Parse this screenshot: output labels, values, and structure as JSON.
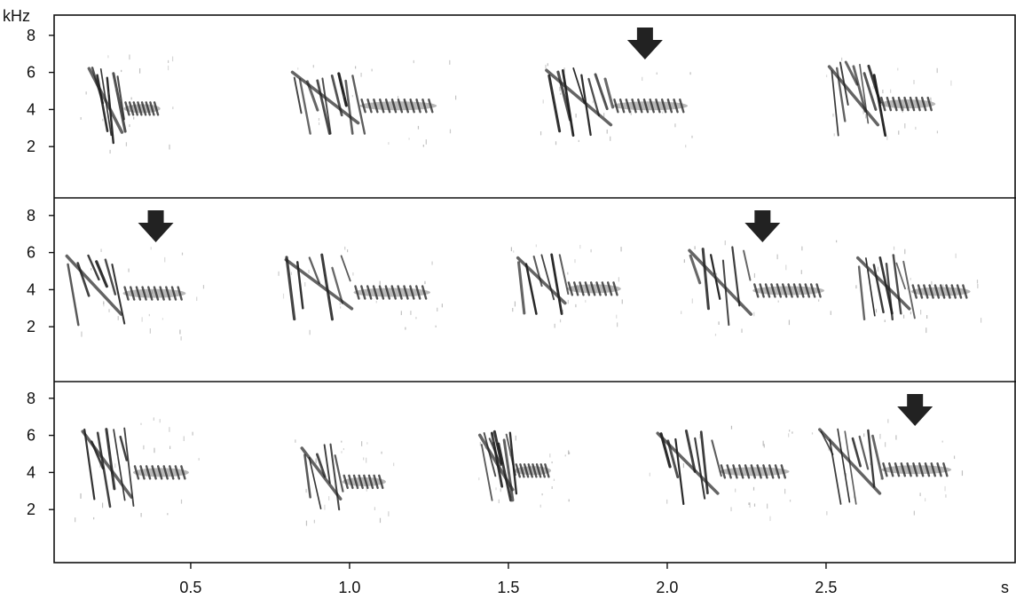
{
  "chart_data": {
    "type": "spectrogram",
    "y_unit": "kHz",
    "x_unit": "s",
    "x_ticks": [
      0.5,
      1.0,
      1.5,
      2.0,
      2.5
    ],
    "x_tick_labels": [
      "0.5",
      "1.0",
      "1.5",
      "2.0",
      "2.5"
    ],
    "y_ticks": [
      2,
      4,
      6,
      8
    ],
    "y_tick_labels": [
      "2",
      "4",
      "6",
      "8"
    ],
    "xlim": [
      0.07,
      2.98
    ],
    "ylim": [
      0,
      9.8
    ],
    "grid": false,
    "panels": [
      {
        "syllables": [
          {
            "t_start": 0.18,
            "t_end": 0.41,
            "f_low": 2.2,
            "f_high": 6.5
          },
          {
            "t_start": 0.82,
            "t_end": 1.28,
            "f_low": 2.7,
            "f_high": 6.3
          },
          {
            "t_start": 1.62,
            "t_end": 2.07,
            "f_low": 2.6,
            "f_high": 6.4
          },
          {
            "t_start": 2.51,
            "t_end": 2.85,
            "f_low": 2.6,
            "f_high": 6.6
          }
        ],
        "arrows_at_s": [
          1.93
        ]
      },
      {
        "syllables": [
          {
            "t_start": 0.11,
            "t_end": 0.49,
            "f_low": 2.1,
            "f_high": 6.1
          },
          {
            "t_start": 0.8,
            "t_end": 1.26,
            "f_low": 2.4,
            "f_high": 5.9
          },
          {
            "t_start": 1.53,
            "t_end": 1.86,
            "f_low": 2.7,
            "f_high": 6.0
          },
          {
            "t_start": 2.07,
            "t_end": 2.5,
            "f_low": 2.1,
            "f_high": 6.4
          },
          {
            "t_start": 2.6,
            "t_end": 2.96,
            "f_low": 2.4,
            "f_high": 6.0
          }
        ],
        "arrows_at_s": [
          0.39,
          2.3
        ]
      },
      {
        "syllables": [
          {
            "t_start": 0.16,
            "t_end": 0.5,
            "f_low": 2.1,
            "f_high": 6.5
          },
          {
            "t_start": 0.85,
            "t_end": 1.12,
            "f_low": 2.0,
            "f_high": 5.6
          },
          {
            "t_start": 1.41,
            "t_end": 1.64,
            "f_low": 2.5,
            "f_high": 6.3
          },
          {
            "t_start": 1.97,
            "t_end": 2.39,
            "f_low": 2.3,
            "f_high": 6.4
          },
          {
            "t_start": 2.48,
            "t_end": 2.9,
            "f_low": 2.3,
            "f_high": 6.6
          }
        ],
        "arrows_at_s": [
          2.78
        ]
      }
    ]
  }
}
